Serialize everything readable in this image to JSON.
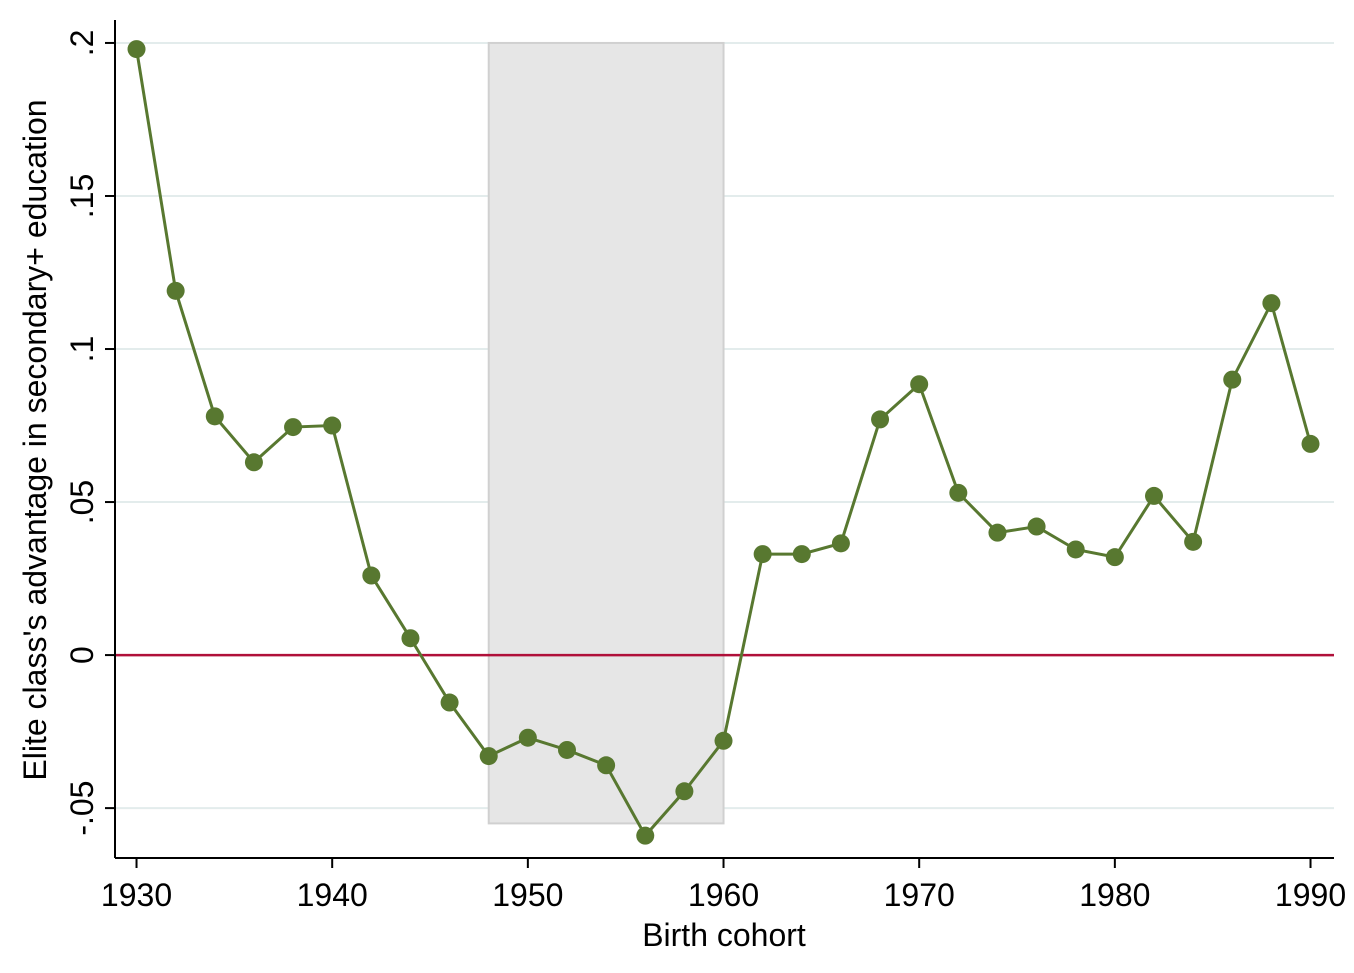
{
  "chart_data": {
    "type": "line",
    "x_label": "Birth cohort",
    "y_label": "Elite class's advantage in secondary+ education",
    "x": [
      1930,
      1932,
      1934,
      1936,
      1938,
      1940,
      1942,
      1944,
      1946,
      1948,
      1950,
      1952,
      1954,
      1956,
      1958,
      1960,
      1962,
      1964,
      1966,
      1968,
      1970,
      1972,
      1974,
      1976,
      1978,
      1980,
      1982,
      1984,
      1986,
      1988,
      1990
    ],
    "series": [
      {
        "name": "Elite class's advantage",
        "color": "#587830",
        "values": [
          0.198,
          0.119,
          0.078,
          0.063,
          0.0745,
          0.075,
          0.026,
          0.0055,
          -0.0155,
          -0.033,
          -0.027,
          -0.031,
          -0.036,
          -0.059,
          -0.0445,
          -0.028,
          0.033,
          0.033,
          0.0365,
          0.077,
          0.0885,
          0.053,
          0.04,
          0.042,
          0.0345,
          0.032,
          0.052,
          0.037,
          0.09,
          0.115,
          0.069
        ]
      }
    ],
    "xlim": [
      1928.9,
      1991.2
    ],
    "xticks": [
      1930,
      1940,
      1950,
      1960,
      1970,
      1980,
      1990
    ],
    "ylim": [
      -0.0663,
      0.2075
    ],
    "yticks": [
      {
        "value": -0.05,
        "label": "-.05"
      },
      0,
      {
        "value": 0.05,
        "label": ".05"
      },
      {
        "value": 0.1,
        "label": ".1"
      },
      {
        "value": 0.15,
        "label": ".15"
      },
      {
        "value": 0.2,
        "label": ".2"
      }
    ],
    "grid": true,
    "shaded_region": {
      "x": [
        1948,
        1960
      ],
      "y": [
        -0.055,
        0.2
      ],
      "color": "#e6e6e6"
    },
    "reference_line": {
      "y": 0,
      "color": "#b0103a"
    }
  }
}
